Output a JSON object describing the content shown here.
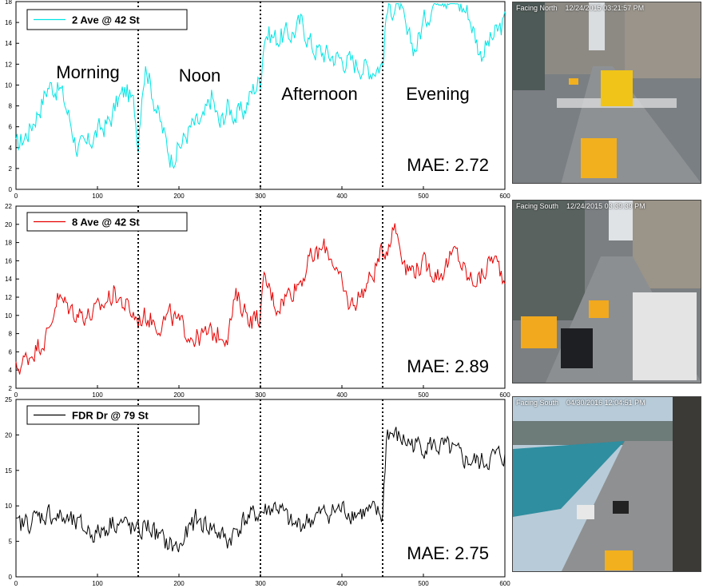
{
  "chart_data": [
    {
      "type": "line",
      "legend": "2 Ave @ 42 St",
      "color": "#00e5e5",
      "xlim": [
        0,
        600
      ],
      "ylim": [
        0,
        18
      ],
      "xticks": [
        "0",
        "100",
        "200",
        "300",
        "400",
        "500",
        "600"
      ],
      "yticks": [
        "0",
        "2",
        "4",
        "6",
        "8",
        "10",
        "12",
        "14",
        "16",
        "18"
      ],
      "period_boundaries": [
        150,
        300,
        450
      ],
      "period_labels": [
        "Morning",
        "Noon",
        "Afternoon",
        "Evening"
      ],
      "mae_label": "MAE: 2.72",
      "anchors": [
        [
          0,
          4
        ],
        [
          15,
          5.5
        ],
        [
          30,
          8
        ],
        [
          40,
          10
        ],
        [
          55,
          9.5
        ],
        [
          65,
          7
        ],
        [
          75,
          4
        ],
        [
          85,
          4
        ],
        [
          100,
          5.5
        ],
        [
          115,
          6.5
        ],
        [
          125,
          8.5
        ],
        [
          135,
          9.5
        ],
        [
          145,
          8
        ],
        [
          150,
          4.5
        ],
        [
          155,
          10
        ],
        [
          160,
          12
        ],
        [
          165,
          10
        ],
        [
          175,
          7
        ],
        [
          190,
          3
        ],
        [
          200,
          4
        ],
        [
          215,
          6
        ],
        [
          230,
          6.5
        ],
        [
          240,
          9
        ],
        [
          250,
          6
        ],
        [
          260,
          8
        ],
        [
          270,
          7
        ],
        [
          280,
          7.5
        ],
        [
          290,
          9.5
        ],
        [
          300,
          10.5
        ],
        [
          305,
          15
        ],
        [
          320,
          14.5
        ],
        [
          340,
          15
        ],
        [
          350,
          16
        ],
        [
          365,
          13.5
        ],
        [
          380,
          13
        ],
        [
          400,
          12.5
        ],
        [
          420,
          12
        ],
        [
          435,
          11.5
        ],
        [
          450,
          12
        ],
        [
          455,
          17
        ],
        [
          470,
          18
        ],
        [
          480,
          14.5
        ],
        [
          490,
          13.5
        ],
        [
          500,
          16
        ],
        [
          510,
          17.5
        ],
        [
          520,
          19
        ],
        [
          540,
          18
        ],
        [
          555,
          17
        ],
        [
          570,
          13
        ],
        [
          580,
          14
        ],
        [
          590,
          15
        ],
        [
          600,
          16
        ]
      ],
      "amp": 1.6
    },
    {
      "type": "line",
      "legend": "8 Ave @ 42 St",
      "color": "#e60000",
      "xlim": [
        0,
        600
      ],
      "ylim": [
        2,
        22
      ],
      "xticks": [
        "0",
        "100",
        "200",
        "300",
        "400",
        "500",
        "600"
      ],
      "yticks": [
        "2",
        "4",
        "6",
        "8",
        "10",
        "12",
        "14",
        "16",
        "18",
        "20",
        "22"
      ],
      "period_boundaries": [
        150,
        300,
        450
      ],
      "mae_label": "MAE: 2.89",
      "anchors": [
        [
          0,
          4
        ],
        [
          20,
          6
        ],
        [
          40,
          8
        ],
        [
          50,
          12
        ],
        [
          70,
          10.5
        ],
        [
          90,
          10
        ],
        [
          100,
          10.5
        ],
        [
          120,
          12.5
        ],
        [
          140,
          10.5
        ],
        [
          150,
          9.5
        ],
        [
          160,
          10
        ],
        [
          175,
          9
        ],
        [
          190,
          10
        ],
        [
          200,
          9
        ],
        [
          220,
          7.5
        ],
        [
          240,
          8
        ],
        [
          260,
          8
        ],
        [
          270,
          12
        ],
        [
          290,
          9.5
        ],
        [
          300,
          10
        ],
        [
          305,
          14
        ],
        [
          320,
          11
        ],
        [
          330,
          12
        ],
        [
          350,
          14
        ],
        [
          360,
          16
        ],
        [
          380,
          17.5
        ],
        [
          390,
          16
        ],
        [
          400,
          13
        ],
        [
          410,
          11
        ],
        [
          420,
          12
        ],
        [
          435,
          14
        ],
        [
          445,
          16
        ],
        [
          450,
          17
        ],
        [
          455,
          17.5
        ],
        [
          465,
          20
        ],
        [
          480,
          15
        ],
        [
          500,
          15.5
        ],
        [
          520,
          14.5
        ],
        [
          540,
          17
        ],
        [
          555,
          14
        ],
        [
          570,
          14
        ],
        [
          585,
          16.5
        ],
        [
          600,
          14
        ]
      ],
      "amp": 1.7
    },
    {
      "type": "line",
      "legend": "FDR Dr @ 79 St",
      "color": "#000000",
      "xlim": [
        0,
        600
      ],
      "ylim": [
        0,
        25
      ],
      "xticks": [
        "0",
        "100",
        "200",
        "300",
        "400",
        "500",
        "600"
      ],
      "yticks": [
        "0",
        "5",
        "10",
        "15",
        "20",
        "25"
      ],
      "period_boundaries": [
        150,
        300,
        450
      ],
      "mae_label": "MAE: 2.75",
      "anchors": [
        [
          0,
          7
        ],
        [
          20,
          8
        ],
        [
          40,
          9
        ],
        [
          60,
          8
        ],
        [
          80,
          7
        ],
        [
          100,
          6
        ],
        [
          120,
          8
        ],
        [
          140,
          7
        ],
        [
          150,
          6
        ],
        [
          160,
          7.5
        ],
        [
          180,
          5
        ],
        [
          200,
          4
        ],
        [
          220,
          8
        ],
        [
          240,
          7
        ],
        [
          260,
          5
        ],
        [
          280,
          8
        ],
        [
          300,
          9
        ],
        [
          320,
          10
        ],
        [
          340,
          7
        ],
        [
          360,
          8
        ],
        [
          380,
          9
        ],
        [
          400,
          9.5
        ],
        [
          420,
          9
        ],
        [
          440,
          9
        ],
        [
          450,
          8.5
        ],
        [
          455,
          20.5
        ],
        [
          470,
          19.5
        ],
        [
          490,
          18.5
        ],
        [
          510,
          18.5
        ],
        [
          530,
          18
        ],
        [
          550,
          16.5
        ],
        [
          570,
          16
        ],
        [
          590,
          17
        ],
        [
          600,
          17
        ]
      ],
      "amp": 2.2
    }
  ],
  "cameras": [
    {
      "label": "Facing North    12/24/2015 03:21:57 PM"
    },
    {
      "label": "Facing South    12/24/2015 03:39:39 PM"
    },
    {
      "label": "Facing South    04/30/2016 12:04:51 PM"
    }
  ]
}
